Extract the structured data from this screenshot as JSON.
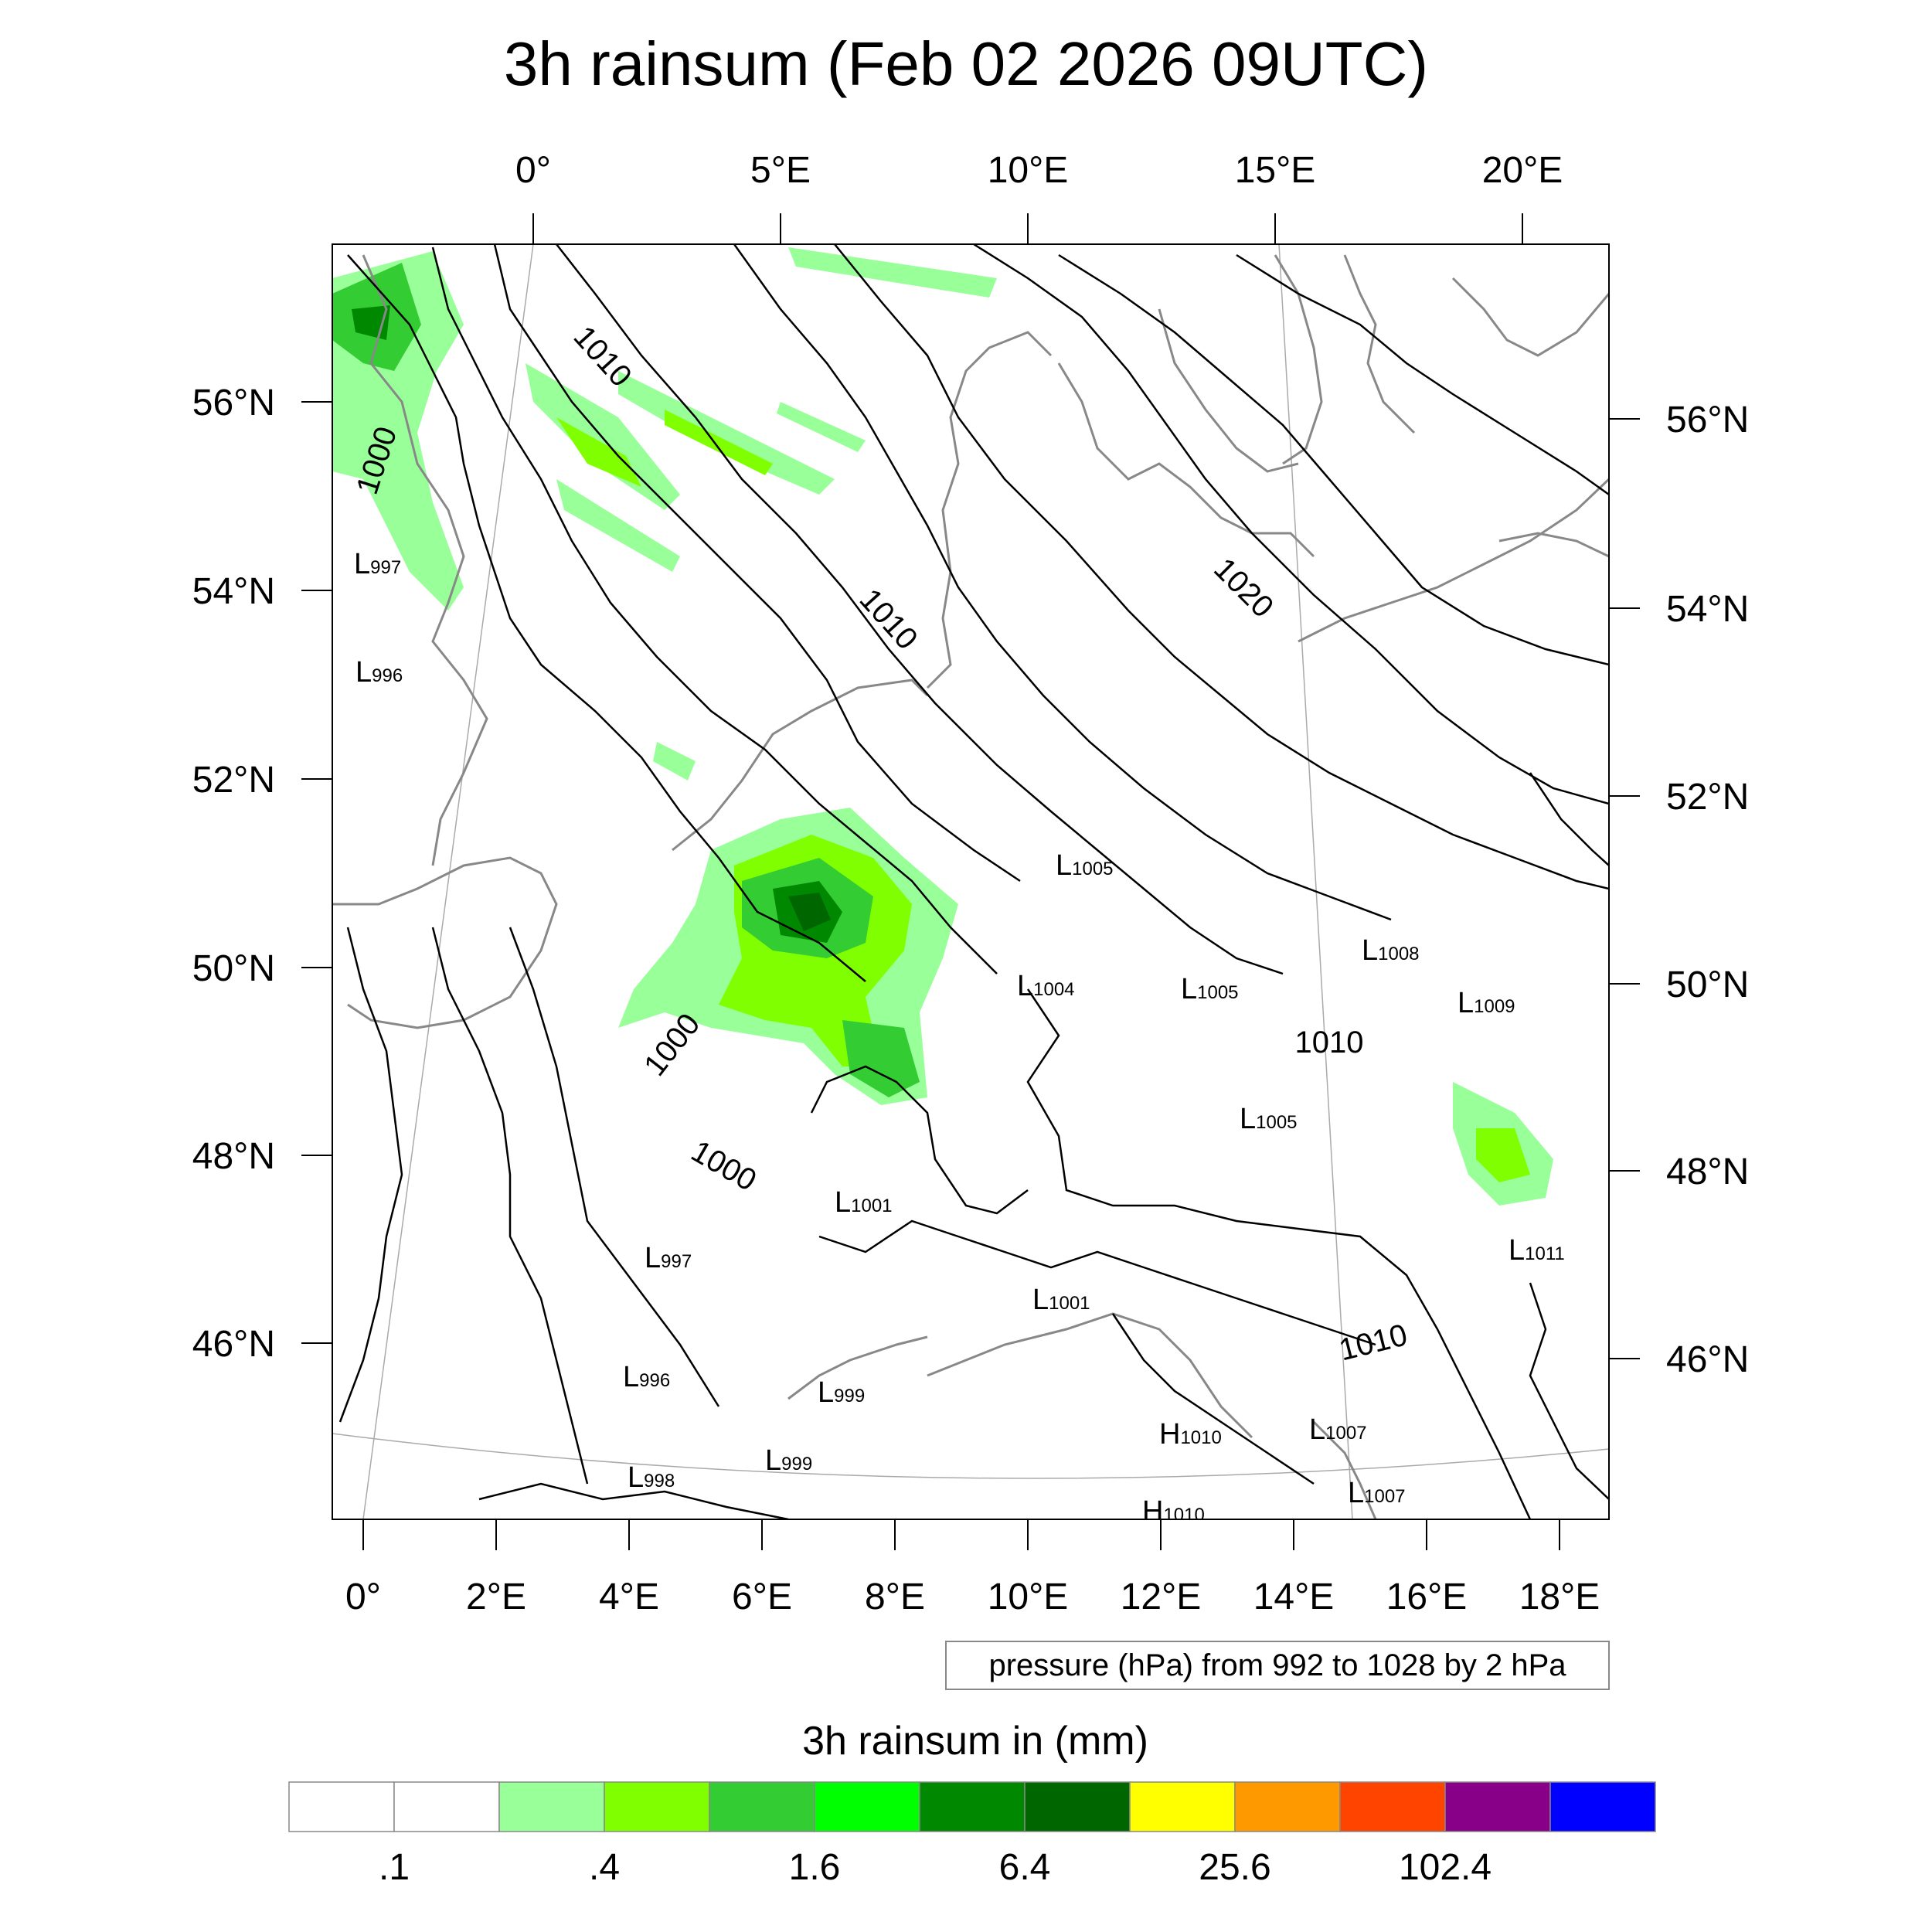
{
  "title": "3h rainsum (Feb 02 2026 09UTC)",
  "top_lon_labels": [
    "0°",
    "5°E",
    "10°E",
    "15°E",
    "20°E"
  ],
  "bottom_lon_labels": [
    "0°",
    "2°E",
    "4°E",
    "6°E",
    "8°E",
    "10°E",
    "12°E",
    "14°E",
    "16°E",
    "18°E"
  ],
  "left_lat_labels": [
    "56°N",
    "54°N",
    "52°N",
    "50°N",
    "48°N",
    "46°N"
  ],
  "right_lat_labels": [
    "56°N",
    "54°N",
    "52°N",
    "50°N",
    "48°N",
    "46°N"
  ],
  "contour_labels": [
    "1010",
    "1000",
    "1010",
    "1020",
    "1000",
    "1000",
    "1010",
    "1010"
  ],
  "pressure_centers": [
    {
      "type": "L",
      "value": "997"
    },
    {
      "type": "L",
      "value": "996"
    },
    {
      "type": "L",
      "value": "1005"
    },
    {
      "type": "L",
      "value": "1004"
    },
    {
      "type": "L",
      "value": "1005"
    },
    {
      "type": "L",
      "value": "1008"
    },
    {
      "type": "L",
      "value": "1009"
    },
    {
      "type": "L",
      "value": "1005"
    },
    {
      "type": "L",
      "value": "1001"
    },
    {
      "type": "L",
      "value": "997"
    },
    {
      "type": "L",
      "value": "1001"
    },
    {
      "type": "L",
      "value": "996"
    },
    {
      "type": "L",
      "value": "999"
    },
    {
      "type": "L",
      "value": "999"
    },
    {
      "type": "L",
      "value": "998"
    },
    {
      "type": "H",
      "value": "1010"
    },
    {
      "type": "L",
      "value": "1007"
    },
    {
      "type": "L",
      "value": "1007"
    },
    {
      "type": "H",
      "value": "1010"
    },
    {
      "type": "L",
      "value": "1011"
    }
  ],
  "info_box": "pressure (hPa) from 992 to 1028 by 2 hPa",
  "colorbar": {
    "title": "3h rainsum in (mm)",
    "colors": [
      "#ffffff",
      "#ffffff",
      "#99ff99",
      "#80ff00",
      "#33cc33",
      "#00ff00",
      "#008800",
      "#006600",
      "#ffff00",
      "#ff9900",
      "#ff4400",
      "#880088",
      "#0000ff"
    ],
    "labels": [
      ".1",
      ".4",
      "1.6",
      "6.4",
      "25.6",
      "102.4"
    ]
  }
}
